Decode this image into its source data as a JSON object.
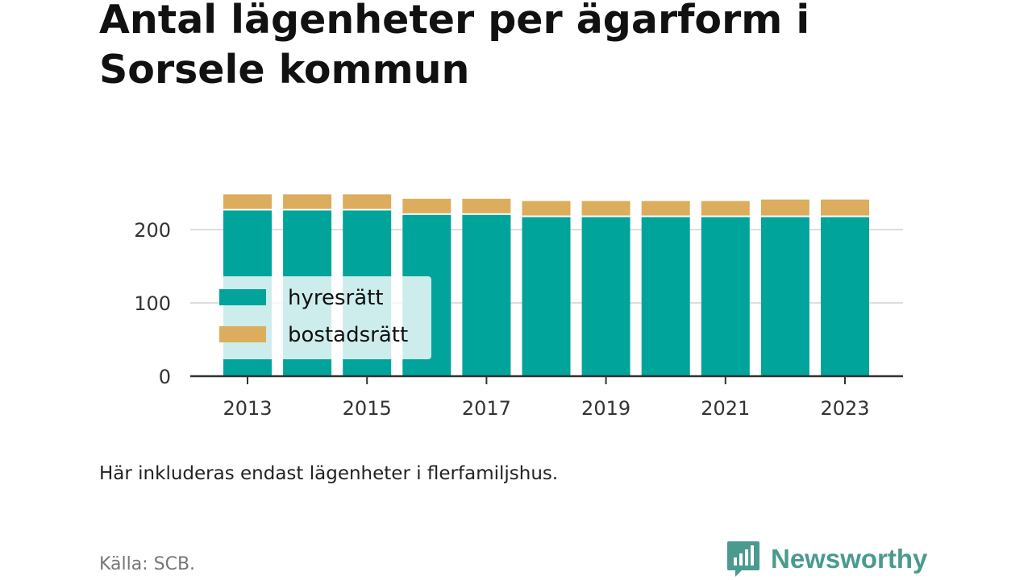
{
  "title": "Antal lägenheter per ägarform i Sorsele kommun",
  "note": "Här inkluderas endast lägenheter i flerfamiljshus.",
  "source": "Källa: SCB.",
  "brand": {
    "name": "Newsworthy",
    "icon": "bar-chart-bubble-icon",
    "color": "#4a9a8f"
  },
  "colors": {
    "hyresratt": "#00a49a",
    "bostadsratt": "#dbad5d",
    "grid": "#dddddd",
    "axis": "#333333"
  },
  "chart_data": {
    "type": "bar",
    "stacked": true,
    "categories": [
      "2013",
      "2014",
      "2015",
      "2016",
      "2017",
      "2018",
      "2019",
      "2020",
      "2021",
      "2022",
      "2023"
    ],
    "x_tick_labels": [
      "2013",
      "2015",
      "2017",
      "2019",
      "2021",
      "2023"
    ],
    "series": [
      {
        "name": "hyresrätt",
        "values": [
          226,
          226,
          226,
          220,
          220,
          217,
          217,
          217,
          217,
          217,
          217
        ]
      },
      {
        "name": "bostadsrätt",
        "values": [
          22,
          22,
          22,
          22,
          22,
          22,
          22,
          22,
          22,
          24,
          24
        ]
      }
    ],
    "y_ticks": [
      0,
      100,
      200
    ],
    "ylim": [
      0,
      250
    ],
    "grid": true,
    "legend": "inside-left"
  }
}
